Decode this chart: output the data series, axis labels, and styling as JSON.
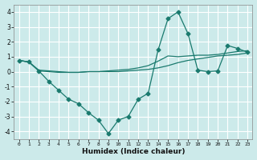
{
  "xlabel": "Humidex (Indice chaleur)",
  "bg_color": "#cceaea",
  "grid_color": "#ffffff",
  "line_color": "#1a7a6e",
  "xlim": [
    -0.5,
    23.5
  ],
  "ylim": [
    -4.5,
    4.5
  ],
  "xticks": [
    0,
    1,
    2,
    3,
    4,
    5,
    6,
    7,
    8,
    9,
    10,
    11,
    12,
    13,
    14,
    15,
    16,
    17,
    18,
    19,
    20,
    21,
    22,
    23
  ],
  "yticks": [
    -4,
    -3,
    -2,
    -1,
    0,
    1,
    2,
    3,
    4
  ],
  "line1_x": [
    0,
    1,
    2,
    3,
    4,
    5,
    6,
    7,
    8,
    9,
    10,
    11,
    12,
    13,
    14,
    15,
    16,
    17,
    18,
    19,
    20,
    21,
    22,
    23
  ],
  "line1_y": [
    0.75,
    0.65,
    0.1,
    0.05,
    0.0,
    -0.05,
    -0.05,
    -0.0,
    0.0,
    0.0,
    0.0,
    0.05,
    0.1,
    0.15,
    0.25,
    0.4,
    0.6,
    0.75,
    0.85,
    0.95,
    1.05,
    1.1,
    1.15,
    1.25
  ],
  "line2_x": [
    0,
    1,
    2,
    3,
    4,
    5,
    6,
    7,
    8,
    9,
    10,
    11,
    12,
    13,
    14,
    15,
    16,
    17,
    18,
    19,
    20,
    21,
    22,
    23
  ],
  "line2_y": [
    0.75,
    0.65,
    0.05,
    0.0,
    -0.05,
    -0.05,
    -0.05,
    -0.0,
    0.0,
    0.05,
    0.1,
    0.15,
    0.25,
    0.4,
    0.7,
    1.05,
    1.0,
    1.05,
    1.1,
    1.1,
    1.15,
    1.25,
    1.35,
    1.4
  ],
  "line3_x": [
    0,
    1,
    2,
    3,
    4,
    5,
    6,
    7,
    8,
    9,
    10,
    11,
    12,
    13,
    14,
    15,
    16,
    17,
    18,
    19,
    20,
    21,
    22,
    23
  ],
  "line3_y": [
    0.75,
    0.65,
    0.05,
    -0.65,
    -1.25,
    -1.85,
    -2.15,
    -2.75,
    -3.25,
    -4.15,
    -3.25,
    -3.0,
    -1.85,
    -1.45,
    1.45,
    3.55,
    4.0,
    2.55,
    0.1,
    0.0,
    0.05,
    1.75,
    1.55,
    1.3
  ]
}
